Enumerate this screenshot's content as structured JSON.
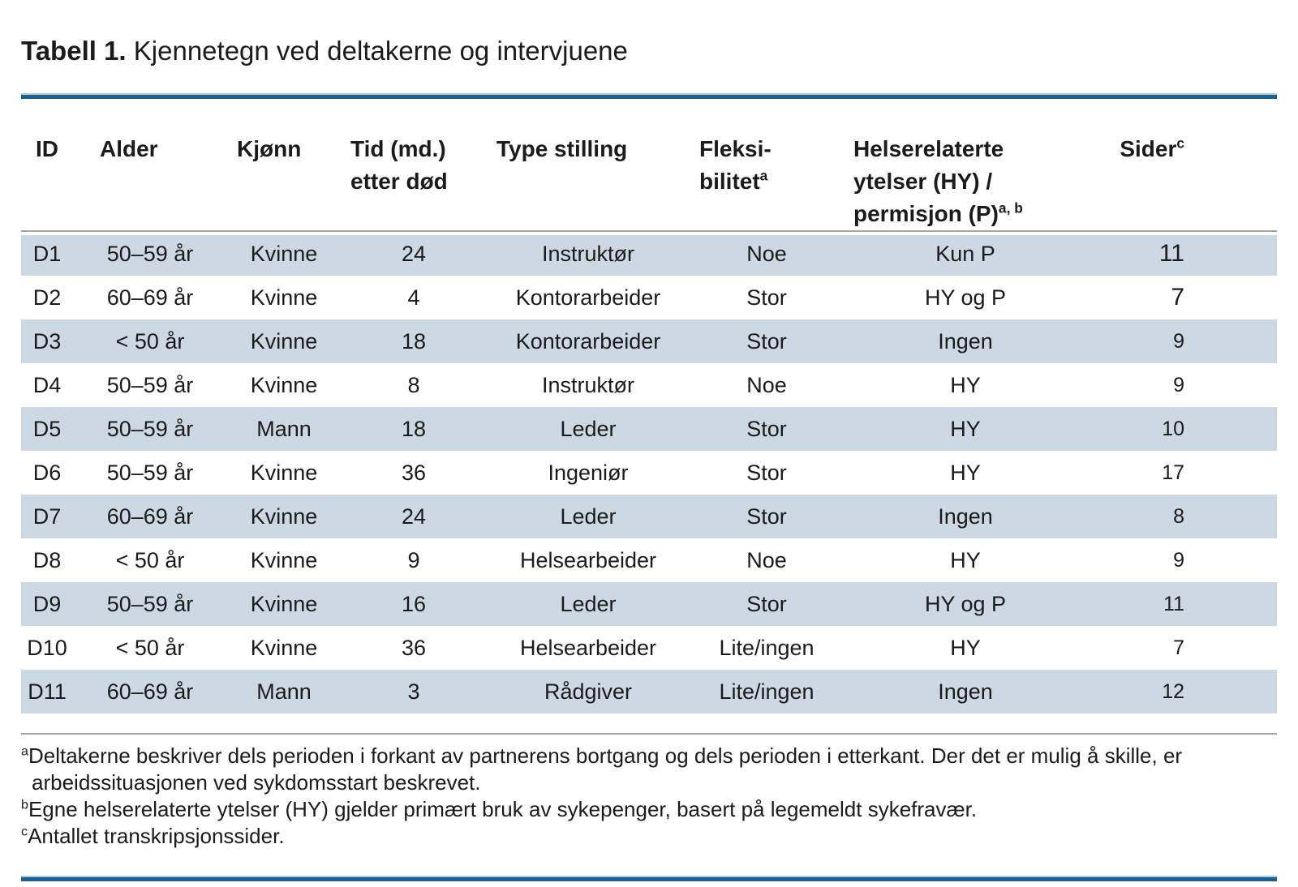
{
  "title": {
    "bold": "Tabell 1.",
    "rest": " Kjennetegn ved deltakerne og intervjuene"
  },
  "table": {
    "columns": [
      {
        "key": "id",
        "lines": [
          "ID"
        ],
        "sup": null
      },
      {
        "key": "alder",
        "lines": [
          "Alder"
        ],
        "sup": null
      },
      {
        "key": "kjonn",
        "lines": [
          "Kjønn"
        ],
        "sup": null
      },
      {
        "key": "tid",
        "lines": [
          "Tid (md.)",
          "etter død"
        ],
        "sup": null
      },
      {
        "key": "type",
        "lines": [
          "Type stilling"
        ],
        "sup": null
      },
      {
        "key": "fleksibilitet",
        "lines": [
          "Fleksi-",
          "bilitet"
        ],
        "sup": "a"
      },
      {
        "key": "helse",
        "lines": [
          "Helserelaterte",
          "ytelser (HY) /",
          "permisjon (P)"
        ],
        "sup": "a, b"
      },
      {
        "key": "sider",
        "lines": [
          "Sider"
        ],
        "sup": "c"
      }
    ],
    "rows": [
      {
        "cells": [
          "D1",
          "50–59 år",
          "Kvinne",
          "24",
          "Instruktør",
          "Noe",
          "Kun P",
          "11"
        ],
        "sider_large": true
      },
      {
        "cells": [
          "D2",
          "60–69 år",
          "Kvinne",
          "4",
          "Kontorarbeider",
          "Stor",
          "HY og P",
          "7"
        ],
        "sider_large": true
      },
      {
        "cells": [
          "D3",
          "< 50 år",
          "Kvinne",
          "18",
          "Kontorarbeider",
          "Stor",
          "Ingen",
          "9"
        ],
        "sider_large": false
      },
      {
        "cells": [
          "D4",
          "50–59 år",
          "Kvinne",
          "8",
          "Instruktør",
          "Noe",
          "HY",
          "9"
        ],
        "sider_large": false
      },
      {
        "cells": [
          "D5",
          "50–59 år",
          "Mann",
          "18",
          "Leder",
          "Stor",
          "HY",
          "10"
        ],
        "sider_large": false
      },
      {
        "cells": [
          "D6",
          "50–59 år",
          "Kvinne",
          "36",
          "Ingeniør",
          "Stor",
          "HY",
          "17"
        ],
        "sider_large": false
      },
      {
        "cells": [
          "D7",
          "60–69 år",
          "Kvinne",
          "24",
          "Leder",
          "Stor",
          "Ingen",
          "8"
        ],
        "sider_large": false
      },
      {
        "cells": [
          "D8",
          "< 50 år",
          "Kvinne",
          "9",
          "Helsearbeider",
          "Noe",
          "HY",
          "9"
        ],
        "sider_large": false
      },
      {
        "cells": [
          "D9",
          "50–59 år",
          "Kvinne",
          "16",
          "Leder",
          "Stor",
          "HY og P",
          "11"
        ],
        "sider_large": false
      },
      {
        "cells": [
          "D10",
          "< 50 år",
          "Kvinne",
          "36",
          "Helsearbeider",
          "Lite/ingen",
          "HY",
          "7"
        ],
        "sider_large": false
      },
      {
        "cells": [
          "D11",
          "60–69 år",
          "Mann",
          "3",
          "Rådgiver",
          "Lite/ingen",
          "Ingen",
          "12"
        ],
        "sider_large": false
      }
    ]
  },
  "footnotes": [
    {
      "marker": "a",
      "text": "Deltakerne beskriver dels perioden i forkant av partnerens bortgang og dels perioden i etterkant. Der det er mulig å skille, er arbeidssituasjonen ved sykdomsstart beskrevet."
    },
    {
      "marker": "b",
      "text": "Egne helserelaterte ytelser (HY) gjelder primært bruk av sykepenger, basert på legemeldt sykefravær."
    },
    {
      "marker": "c",
      "text": "Antallet transkripsjonssider."
    }
  ],
  "colors": {
    "accent_rule": "#1d618c",
    "accent_rule_light": "#aecbdd",
    "row_stripe": "#ccd8e3",
    "divider": "#a3a3a3",
    "text": "#1b1b1b"
  }
}
